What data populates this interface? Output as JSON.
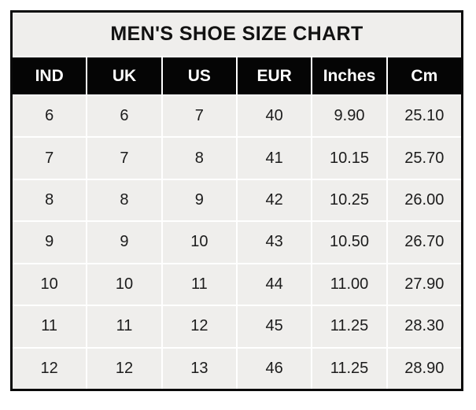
{
  "table": {
    "title": "MEN'S SHOE SIZE CHART",
    "columns": [
      "IND",
      "UK",
      "US",
      "EUR",
      "Inches",
      "Cm"
    ],
    "rows": [
      [
        "6",
        "6",
        "7",
        "40",
        "9.90",
        "25.10"
      ],
      [
        "7",
        "7",
        "8",
        "41",
        "10.15",
        "25.70"
      ],
      [
        "8",
        "8",
        "9",
        "42",
        "10.25",
        "26.00"
      ],
      [
        "9",
        "9",
        "10",
        "43",
        "10.50",
        "26.70"
      ],
      [
        "10",
        "10",
        "11",
        "44",
        "11.00",
        "27.90"
      ],
      [
        "11",
        "11",
        "12",
        "45",
        "11.25",
        "28.30"
      ],
      [
        "12",
        "12",
        "13",
        "46",
        "11.25",
        "28.90"
      ]
    ]
  },
  "colors": {
    "border": "#0a0a0a",
    "header_bg": "#050505",
    "header_text": "#ffffff",
    "cell_bg": "#efeeec",
    "gridline": "#ffffff",
    "title_bg": "#efeeec",
    "text": "#1c1c1c"
  },
  "chart_data": {
    "type": "table",
    "title": "MEN'S SHOE SIZE CHART",
    "columns": [
      "IND",
      "UK",
      "US",
      "EUR",
      "Inches",
      "Cm"
    ],
    "rows": [
      [
        6,
        6,
        7,
        40,
        9.9,
        25.1
      ],
      [
        7,
        7,
        8,
        41,
        10.15,
        25.7
      ],
      [
        8,
        8,
        9,
        42,
        10.25,
        26.0
      ],
      [
        9,
        9,
        10,
        43,
        10.5,
        26.7
      ],
      [
        10,
        10,
        11,
        44,
        11.0,
        27.9
      ],
      [
        11,
        11,
        12,
        45,
        11.25,
        28.3
      ],
      [
        12,
        12,
        13,
        46,
        11.25,
        28.9
      ]
    ],
    "layout": {
      "header_style": "black-bg-white-bold-text",
      "body_style": "light-gray-cells-white-gridlines",
      "outer_border": "thick-black"
    }
  }
}
